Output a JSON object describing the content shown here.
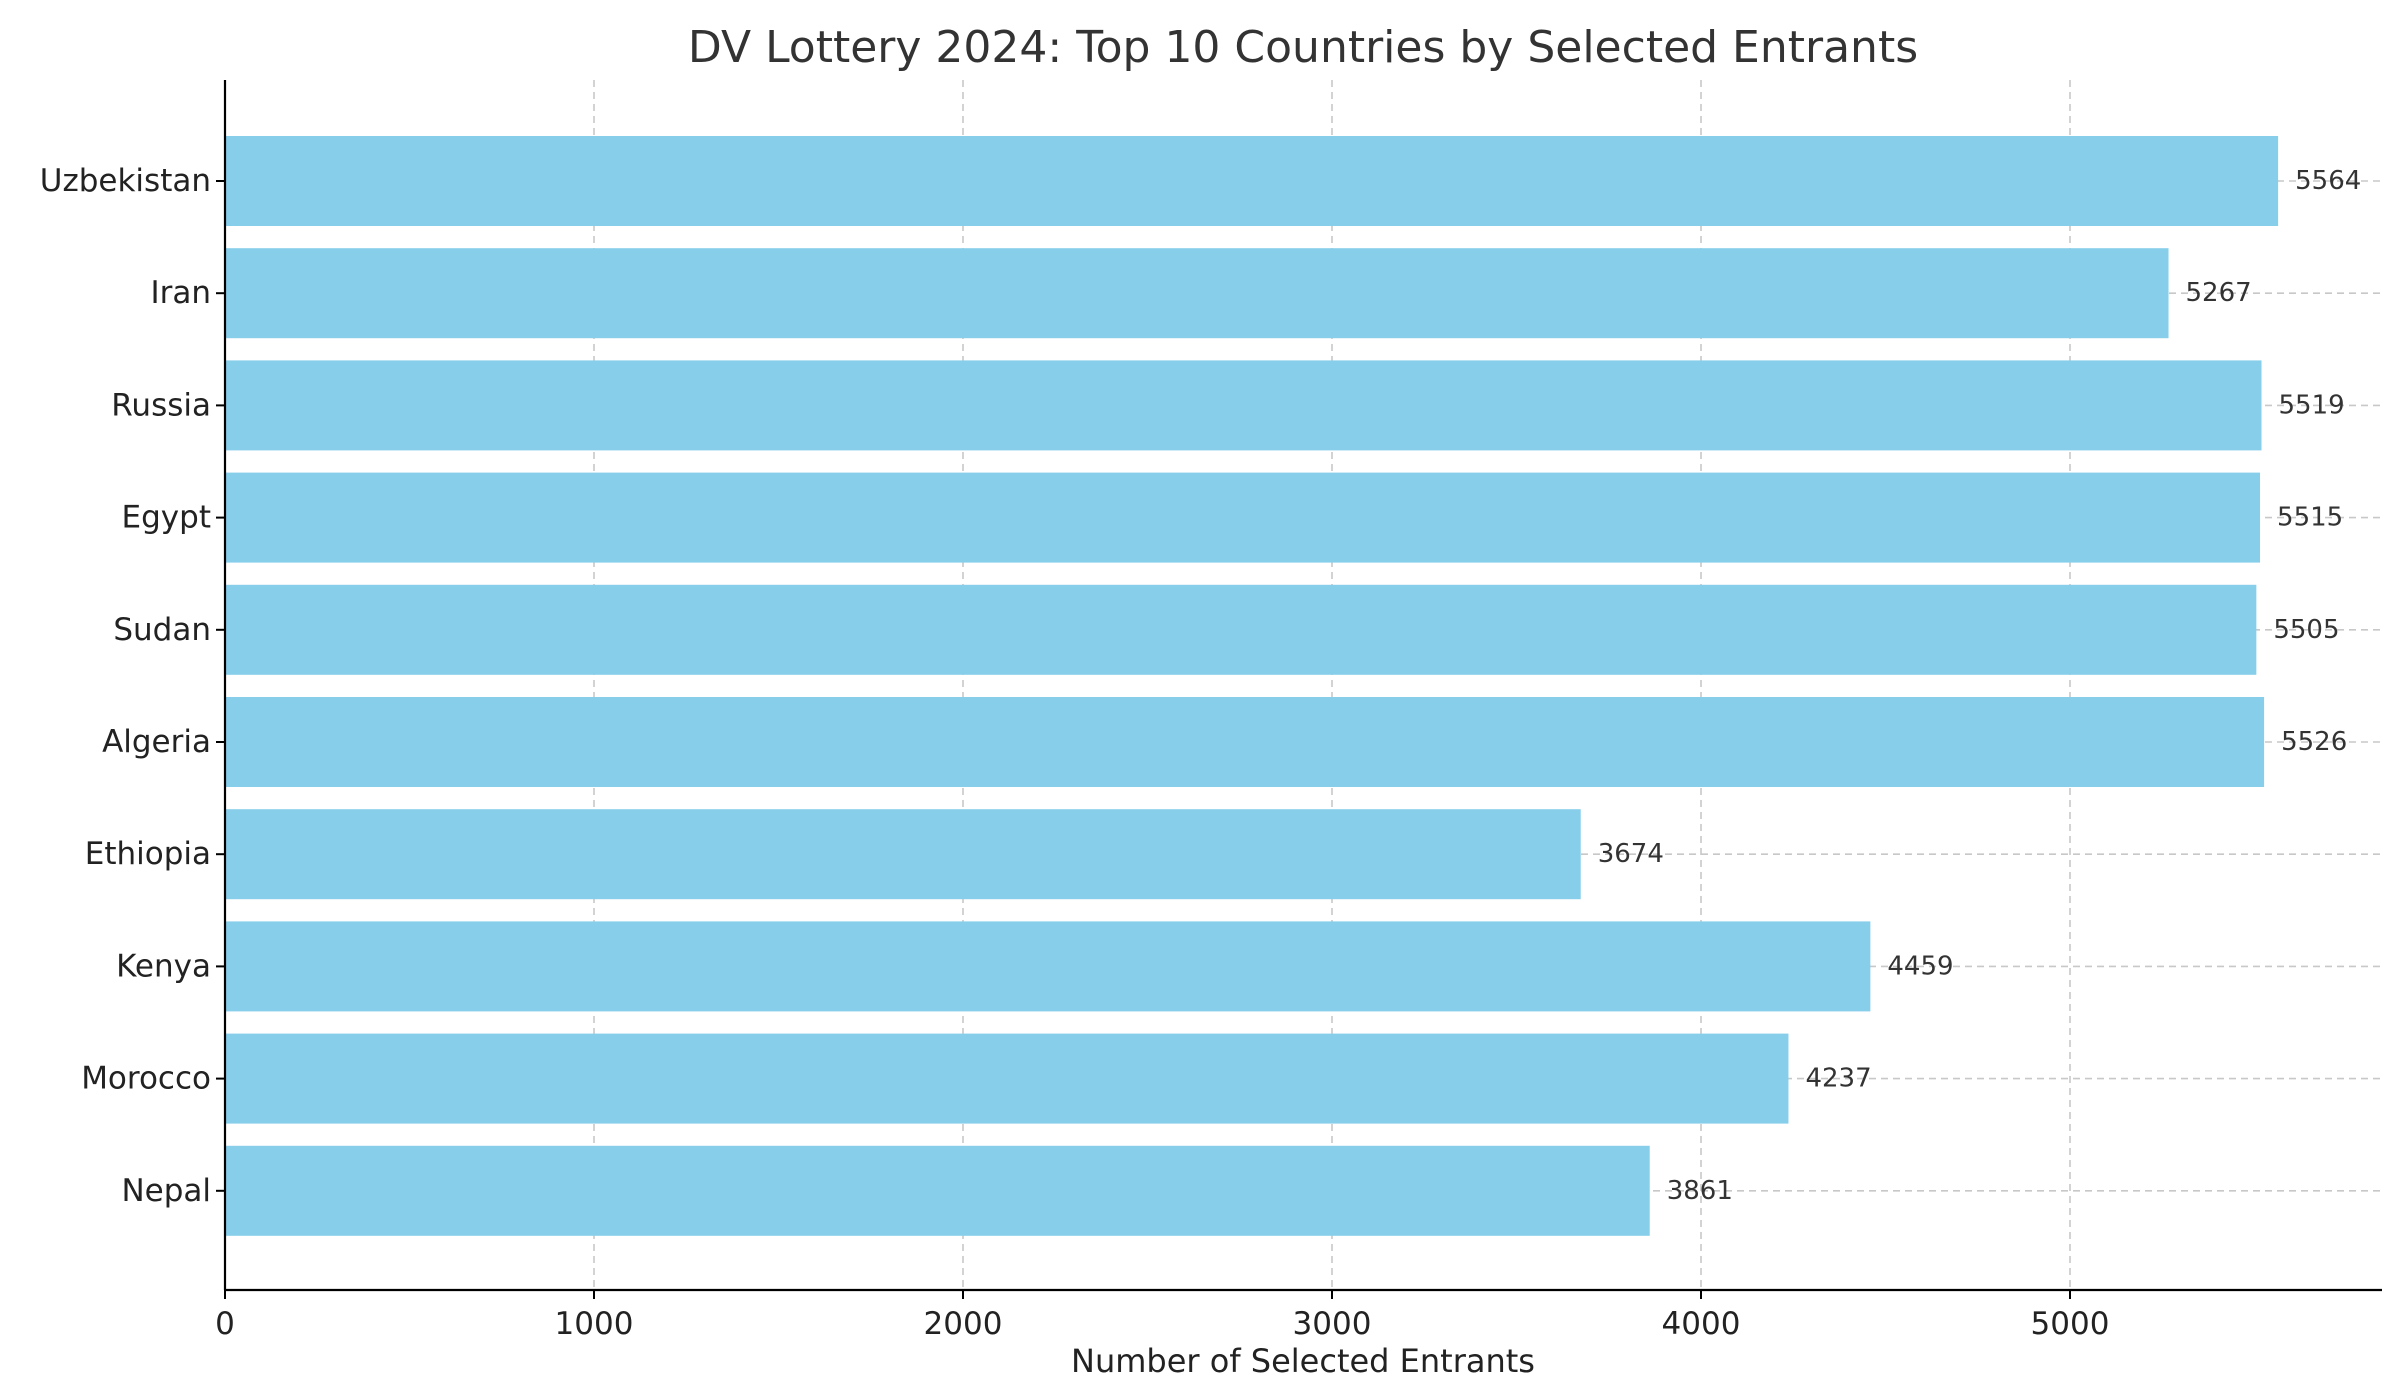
{
  "chart_data": {
    "type": "bar",
    "orientation": "horizontal",
    "title": "DV Lottery 2024: Top 10 Countries by Selected Entrants",
    "xlabel": "Number of Selected Entrants",
    "ylabel": "",
    "categories": [
      "Uzbekistan",
      "Iran",
      "Russia",
      "Egypt",
      "Sudan",
      "Algeria",
      "Ethiopia",
      "Kenya",
      "Morocco",
      "Nepal"
    ],
    "values": [
      5564,
      5267,
      5519,
      5515,
      5505,
      5526,
      3674,
      4459,
      4237,
      3861
    ],
    "xlim": [
      0,
      5840
    ],
    "xticks": [
      0,
      1000,
      2000,
      3000,
      4000,
      5000
    ],
    "grid": true,
    "legend": "none",
    "bar_color": "#87ceeb"
  }
}
